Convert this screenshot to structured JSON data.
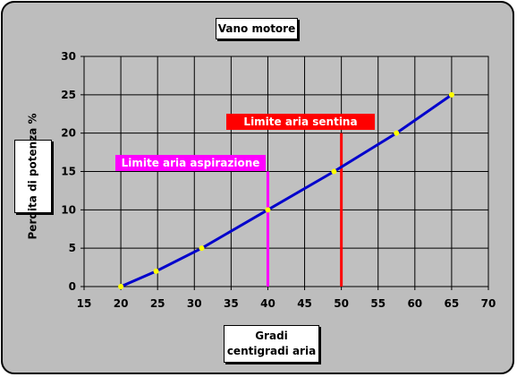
{
  "chart_data": {
    "type": "line",
    "title": "Vano motore",
    "xlabel": "Gradi centigradi aria",
    "ylabel": "Perdita di potenza %",
    "xlim": [
      15,
      70
    ],
    "ylim": [
      0,
      30
    ],
    "xticks": [
      "15",
      "20",
      "25",
      "30",
      "35",
      "40",
      "45",
      "50",
      "55",
      "60",
      "65",
      "70"
    ],
    "yticks": [
      "0",
      "5",
      "10",
      "15",
      "20",
      "25",
      "30"
    ],
    "grid": true,
    "series": [
      {
        "x": [
          20,
          24.8,
          31,
          40,
          49,
          57.5,
          65
        ],
        "y": [
          0,
          2,
          5,
          10,
          15,
          20,
          25
        ],
        "line_color": "#0000cc",
        "marker_color": "#ffff00"
      }
    ],
    "vlines": [
      {
        "x": 40,
        "y_max": 15,
        "color": "#ff00ff",
        "label": "Limite aria aspirazione"
      },
      {
        "x": 50,
        "y_max": 20,
        "color": "#ff0000",
        "label": "Limite aria sentina"
      }
    ],
    "colors": {
      "frame_background": "#bdbdbd",
      "plot_background": "#c0c0c0",
      "grid": "#000000"
    }
  }
}
